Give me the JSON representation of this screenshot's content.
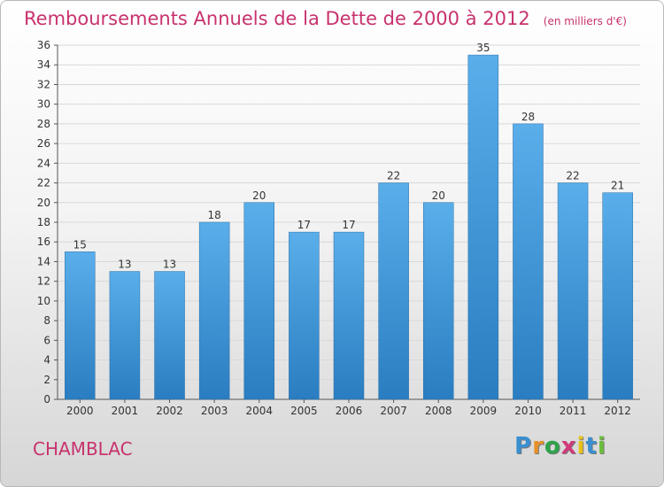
{
  "header": {
    "title": "Remboursements Annuels de la Dette de 2000 à 2012",
    "unit": "(en milliers d'€)"
  },
  "footer": {
    "commune": "CHAMBLAC",
    "brand": "Proxiti",
    "brand_colors": [
      "#3a8fd0",
      "#e8912a",
      "#2da44a",
      "#d23a7a",
      "#e8c21a",
      "#3a8fd0",
      "#6abf3a"
    ]
  },
  "colors": {
    "bar_top": "#5aaeea",
    "bar_bottom": "#2a7dc0",
    "title": "#c8326e",
    "grid": "#d8d8d8"
  },
  "chart_data": {
    "type": "bar",
    "title": "Remboursements Annuels de la Dette de 2000 à 2012",
    "subtitle": "(en milliers d'€)",
    "categories": [
      "2000",
      "2001",
      "2002",
      "2003",
      "2004",
      "2005",
      "2006",
      "2007",
      "2008",
      "2009",
      "2010",
      "2011",
      "2012"
    ],
    "values": [
      15,
      13,
      13,
      18,
      20,
      17,
      17,
      22,
      20,
      35,
      28,
      22,
      21
    ],
    "ylim": [
      0,
      36
    ],
    "yticks": [
      0,
      2,
      4,
      6,
      8,
      10,
      12,
      14,
      16,
      18,
      20,
      22,
      24,
      26,
      28,
      30,
      32,
      34,
      36
    ],
    "grid": true,
    "data_labels": true
  }
}
